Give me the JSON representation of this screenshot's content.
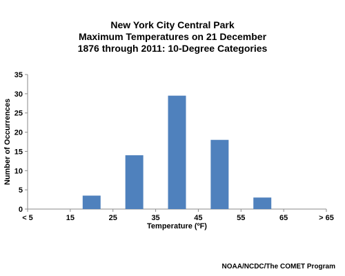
{
  "chart_data": {
    "type": "bar",
    "title_lines": [
      "New York City Central Park",
      "Maximum Temperatures on 21 December",
      "1876 through 2011: 10-Degree Categories"
    ],
    "xlabel": "Temperature (ºF)",
    "ylabel": "Number of Occurrences",
    "ylim": [
      0,
      35
    ],
    "yticks": [
      0,
      5,
      10,
      15,
      20,
      25,
      30,
      35
    ],
    "x_tick_labels": [
      "< 5",
      "15",
      "25",
      "35",
      "45",
      "55",
      "65",
      "> 65"
    ],
    "bars": [
      {
        "bin": "15-25",
        "value": 3.5
      },
      {
        "bin": "25-35",
        "value": 14
      },
      {
        "bin": "35-45",
        "value": 29.5
      },
      {
        "bin": "45-55",
        "value": 18
      },
      {
        "bin": "55-65",
        "value": 3
      }
    ],
    "bar_color": "#4f81bd",
    "grid": false,
    "legend": "none"
  },
  "credit": "NOAA/NCDC/The COMET Program"
}
